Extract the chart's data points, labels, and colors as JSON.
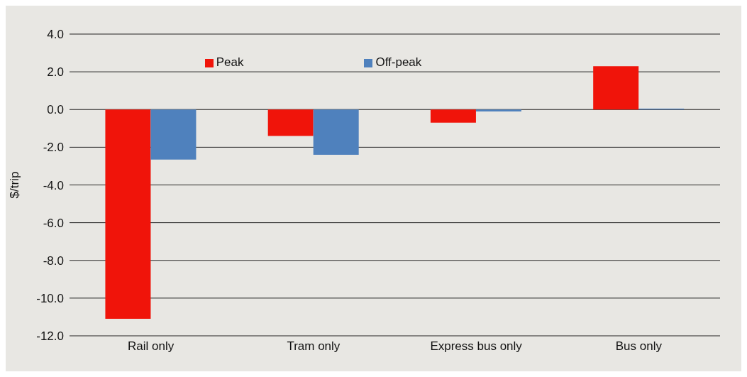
{
  "chart_data": {
    "type": "bar",
    "ylabel": "$/trip",
    "categories": [
      "Rail only",
      "Tram only",
      "Express bus only",
      "Bus only"
    ],
    "series": [
      {
        "name": "Peak",
        "color": "#f0140a",
        "values": [
          -11.1,
          -1.4,
          -0.7,
          2.3
        ]
      },
      {
        "name": "Off-peak",
        "color": "#4f81bd",
        "values": [
          -2.65,
          -2.4,
          -0.1,
          0.05
        ]
      }
    ],
    "ylim": [
      -12,
      4
    ],
    "yticks": [
      {
        "value": -12,
        "label": "-12.0"
      },
      {
        "value": -10,
        "label": "-10.0"
      },
      {
        "value": -8,
        "label": "-8.0"
      },
      {
        "value": -6,
        "label": "-6.0"
      },
      {
        "value": -4,
        "label": "-4.0"
      },
      {
        "value": -2,
        "label": "-2.0"
      },
      {
        "value": 0,
        "label": "0.0"
      },
      {
        "value": 2,
        "label": "2.0"
      },
      {
        "value": 4,
        "label": "4.0"
      }
    ],
    "grid": "y",
    "legend": "top"
  }
}
